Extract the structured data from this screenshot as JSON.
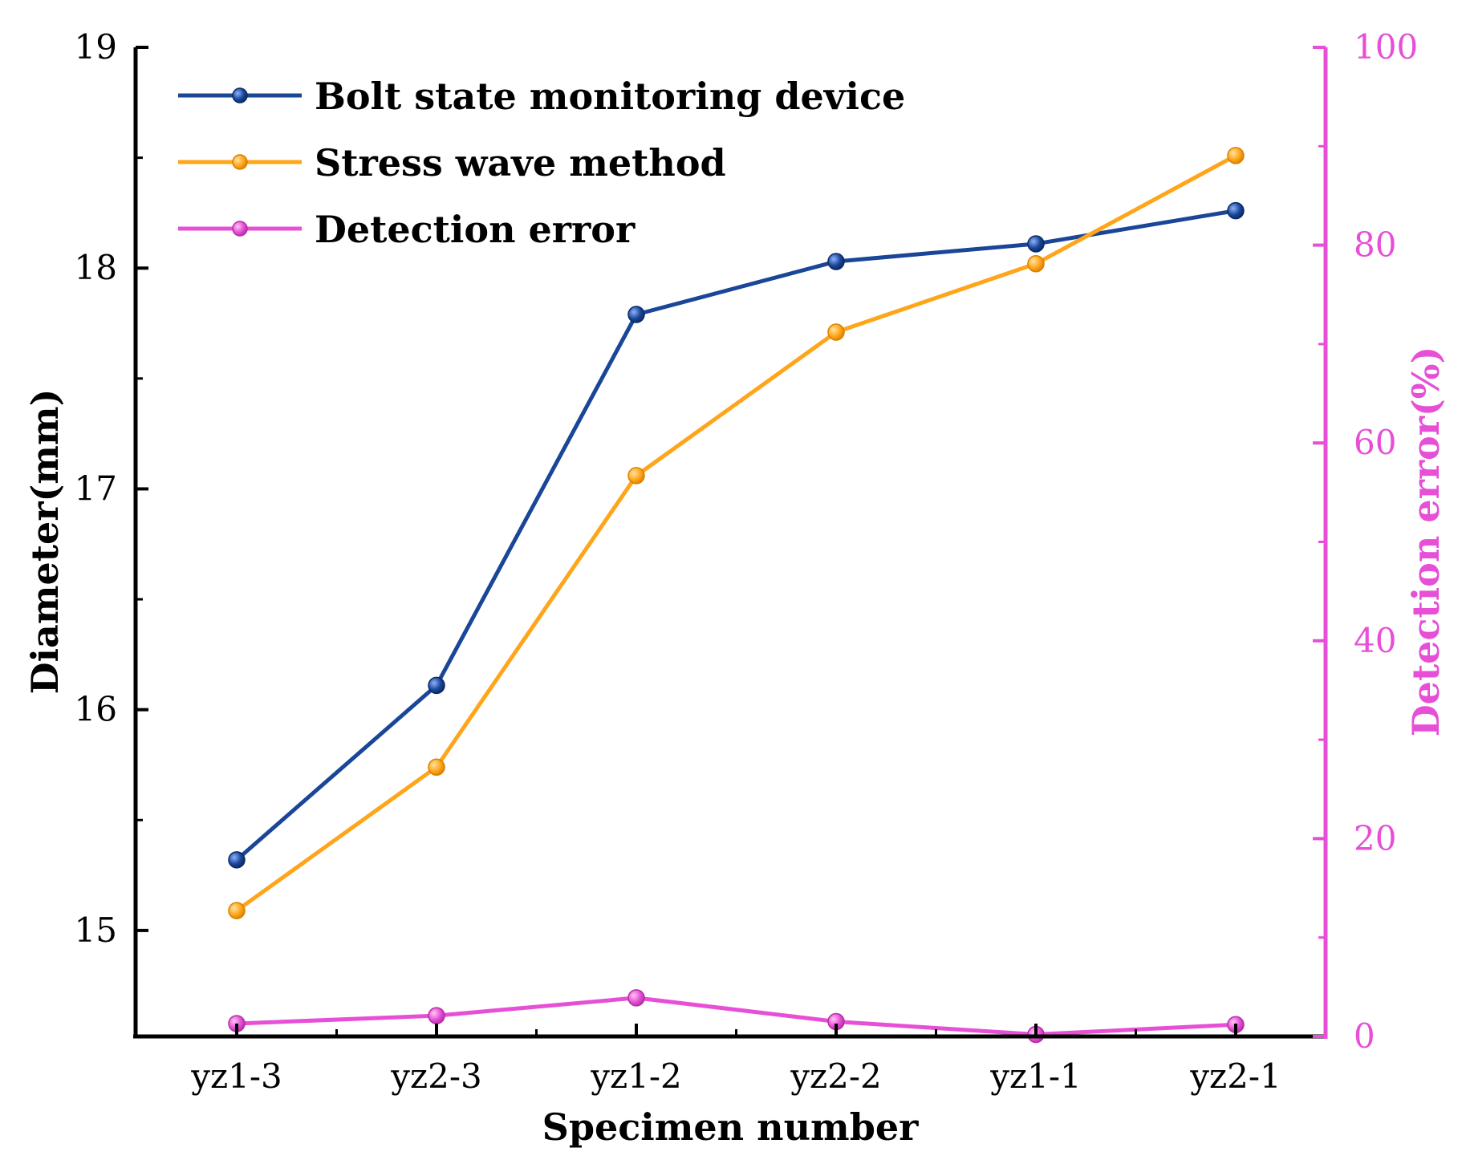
{
  "chart_data": {
    "type": "line",
    "categories": [
      "yz1-3",
      "yz2-3",
      "yz1-2",
      "yz2-2",
      "yz1-1",
      "yz2-1"
    ],
    "xlabel": "Specimen number",
    "ylabel": "Diameter(mm)",
    "ylabel_right": "Detection error(%)",
    "ylim": [
      14.52,
      19.0
    ],
    "ylim_right": [
      0,
      100
    ],
    "yticks": [
      "15",
      "16",
      "17",
      "18",
      "19"
    ],
    "yticks_right": [
      "0",
      "20",
      "40",
      "60",
      "80",
      "100"
    ],
    "series": [
      {
        "name": "Bolt state monitoring device",
        "axis": "left",
        "color": "#1a4698",
        "values": [
          15.32,
          16.11,
          17.79,
          18.03,
          18.11,
          18.26
        ]
      },
      {
        "name": "Stress wave method",
        "axis": "left",
        "color": "#ffa51a",
        "values": [
          15.09,
          15.74,
          17.06,
          17.71,
          18.02,
          18.51
        ]
      },
      {
        "name": "Detection error",
        "axis": "right",
        "color": "#e64fd6",
        "values": [
          1.3,
          2.1,
          3.9,
          1.5,
          0.2,
          1.2
        ]
      }
    ]
  },
  "colors": {
    "axis": "#000000",
    "right_axis": "#e64fd6"
  }
}
